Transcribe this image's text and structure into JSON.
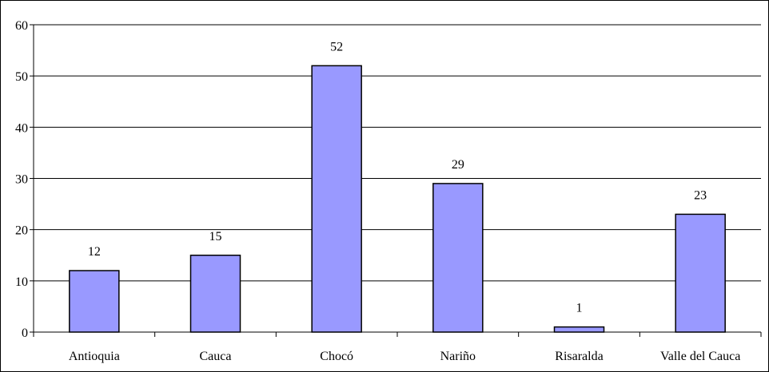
{
  "chart_data": {
    "type": "bar",
    "categories": [
      "Antioquia",
      "Cauca",
      "Chocó",
      "Nariño",
      "Risaralda",
      "Valle del Cauca"
    ],
    "values": [
      12,
      15,
      52,
      29,
      1,
      23
    ],
    "data_labels": [
      "12",
      "15",
      "52",
      "29",
      "1",
      "23"
    ],
    "ylim": [
      0,
      60
    ],
    "yticks": [
      "0",
      "10",
      "20",
      "30",
      "40",
      "50",
      "60"
    ],
    "grid": true,
    "legend": "none",
    "bar_color": "#9999ff",
    "bar_edge_color": "#000000"
  }
}
